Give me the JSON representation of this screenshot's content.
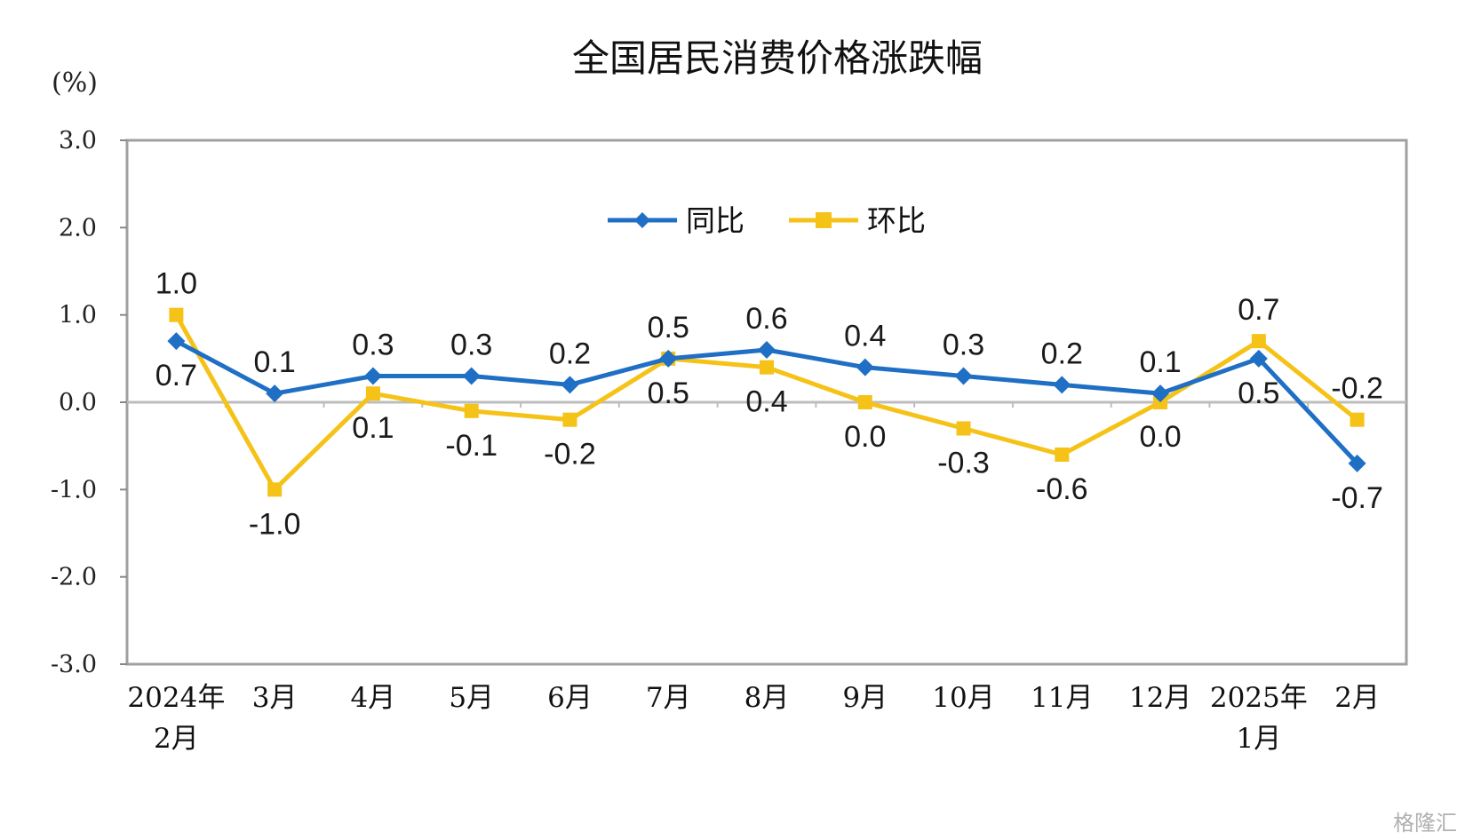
{
  "chart_data": {
    "type": "line",
    "title": "全国居民消费价格涨跌幅",
    "ylabel": "(%)",
    "ylim": [
      -3.0,
      3.0
    ],
    "yticks": [
      "3.0",
      "2.0",
      "1.0",
      "0.0",
      "-1.0",
      "-2.0",
      "-3.0"
    ],
    "categories": [
      [
        "2024年",
        "2月"
      ],
      [
        "3月"
      ],
      [
        "4月"
      ],
      [
        "5月"
      ],
      [
        "6月"
      ],
      [
        "7月"
      ],
      [
        "8月"
      ],
      [
        "9月"
      ],
      [
        "10月"
      ],
      [
        "11月"
      ],
      [
        "12月"
      ],
      [
        "2025年",
        "1月"
      ],
      [
        "2月"
      ]
    ],
    "grid": false,
    "legend_position": "top-center",
    "series": [
      {
        "name": "同比",
        "color": "#1f6fc5",
        "marker": "diamond",
        "values": [
          0.7,
          0.1,
          0.3,
          0.3,
          0.2,
          0.5,
          0.6,
          0.4,
          0.3,
          0.2,
          0.1,
          0.5,
          -0.7
        ],
        "labels": [
          "0.7",
          "0.1",
          "0.3",
          "0.3",
          "0.2",
          "0.5",
          "0.6",
          "0.4",
          "0.3",
          "0.2",
          "0.1",
          "0.5",
          "-0.7"
        ]
      },
      {
        "name": "环比",
        "color": "#f5c218",
        "marker": "square",
        "values": [
          1.0,
          -1.0,
          0.1,
          -0.1,
          -0.2,
          0.5,
          0.4,
          0.0,
          -0.3,
          -0.6,
          0.0,
          0.7,
          -0.2
        ],
        "labels": [
          "1.0",
          "-1.0",
          "0.1",
          "-0.1",
          "-0.2",
          "0.5",
          "0.4",
          "0.0",
          "-0.3",
          "-0.6",
          "0.0",
          "0.7",
          "-0.2"
        ]
      }
    ]
  },
  "watermark": "格隆汇"
}
